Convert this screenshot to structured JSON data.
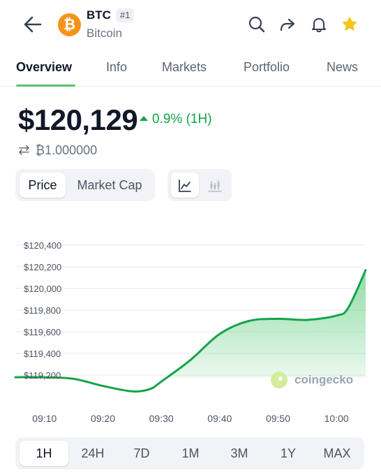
{
  "header": {
    "coin_glyph": "₿",
    "symbol": "BTC",
    "rank": "#1",
    "name": "Bitcoin",
    "icons": [
      "back-arrow-icon",
      "search-icon",
      "share-icon",
      "bell-icon",
      "star-icon"
    ],
    "star_color": "#f5c518"
  },
  "tabs": [
    {
      "label": "Overview",
      "active": true
    },
    {
      "label": "Info",
      "active": false
    },
    {
      "label": "Markets",
      "active": false
    },
    {
      "label": "Portfolio",
      "active": false
    },
    {
      "label": "News",
      "active": false
    }
  ],
  "price": {
    "value": "$120,129",
    "change": "0.9% (1H)",
    "direction": "up",
    "btc_value": "₿1.000000"
  },
  "toggles": {
    "price_label": "Price",
    "market_cap_label": "Market Cap",
    "active": "Price",
    "chart_types": [
      "line-chart-icon",
      "candlestick-chart-icon"
    ],
    "active_chart_type": "line-chart-icon"
  },
  "watermark": "coingecko",
  "colors": {
    "accent_green": "#16a34a",
    "tab_underline": "#55c56a",
    "coin_orange": "#f7931a"
  },
  "chart_data": {
    "type": "area",
    "title": "",
    "xlabel": "",
    "ylabel": "",
    "x_ticks": [
      "09:10",
      "09:20",
      "09:30",
      "09:40",
      "09:50",
      "10:00"
    ],
    "y_ticks": [
      "$119,200",
      "$119,400",
      "$119,600",
      "$119,800",
      "$120,000",
      "$120,200",
      "$120,400"
    ],
    "ylim": [
      119200,
      120400
    ],
    "grid": true,
    "series": [
      {
        "x": [
          "09:05",
          "09:10",
          "09:15",
          "09:20",
          "09:25",
          "09:28",
          "09:30",
          "09:35",
          "09:40",
          "09:45",
          "09:50",
          "09:55",
          "10:00",
          "10:02",
          "10:05"
        ],
        "values": [
          119180,
          119180,
          119165,
          119100,
          119050,
          119070,
          119140,
          119340,
          119580,
          119700,
          119720,
          119710,
          119750,
          119820,
          120170
        ]
      }
    ]
  },
  "range_options": [
    {
      "label": "1H",
      "active": true
    },
    {
      "label": "24H",
      "active": false
    },
    {
      "label": "7D",
      "active": false
    },
    {
      "label": "1M",
      "active": false
    },
    {
      "label": "3M",
      "active": false
    },
    {
      "label": "1Y",
      "active": false
    },
    {
      "label": "MAX",
      "active": false
    }
  ]
}
